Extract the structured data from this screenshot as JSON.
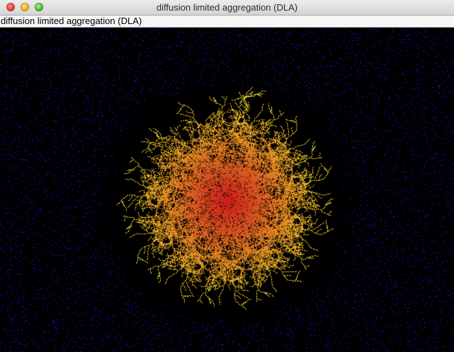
{
  "window": {
    "title": "diffusion limited aggregation (DLA)",
    "controls": [
      "close",
      "minimize",
      "zoom"
    ]
  },
  "panel": {
    "label": "diffusion limited aggregation (DLA)"
  },
  "simulation": {
    "background_color": "#000000",
    "free_particle_color": "#1a1ae0",
    "cluster_color_core": "#cc1a1a",
    "cluster_color_tip": "#f0e02a"
  }
}
